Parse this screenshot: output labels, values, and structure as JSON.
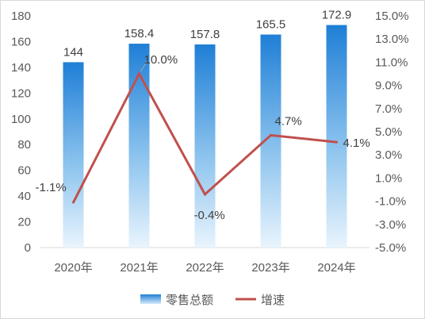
{
  "chart_data": {
    "type": "bar",
    "categories": [
      "2020年",
      "2021年",
      "2022年",
      "2023年",
      "2024年"
    ],
    "series": [
      {
        "name": "零售总额",
        "type": "bar",
        "axis": "left",
        "values": [
          144,
          158.4,
          157.8,
          165.5,
          172.9
        ],
        "labels": [
          "144",
          "158.4",
          "157.8",
          "165.5",
          "172.9"
        ],
        "color": "#2f8ad8"
      },
      {
        "name": "增速",
        "type": "line",
        "axis": "right",
        "values": [
          -1.1,
          10.0,
          -0.4,
          4.7,
          4.1
        ],
        "labels": [
          "-1.1%",
          "10.0%",
          "-0.4%",
          "4.7%",
          "4.1%"
        ],
        "color": "#c0504d"
      }
    ],
    "y_left": {
      "min": 0,
      "max": 180,
      "ticks": [
        "0",
        "20",
        "40",
        "60",
        "80",
        "100",
        "120",
        "140",
        "160",
        "180"
      ]
    },
    "y_right": {
      "min": -5,
      "max": 15,
      "ticks": [
        "-5.0%",
        "-3.0%",
        "-1.0%",
        "1.0%",
        "3.0%",
        "5.0%",
        "7.0%",
        "9.0%",
        "11.0%",
        "13.0%",
        "15.0%"
      ]
    },
    "grid": false,
    "legend": "bottom"
  }
}
